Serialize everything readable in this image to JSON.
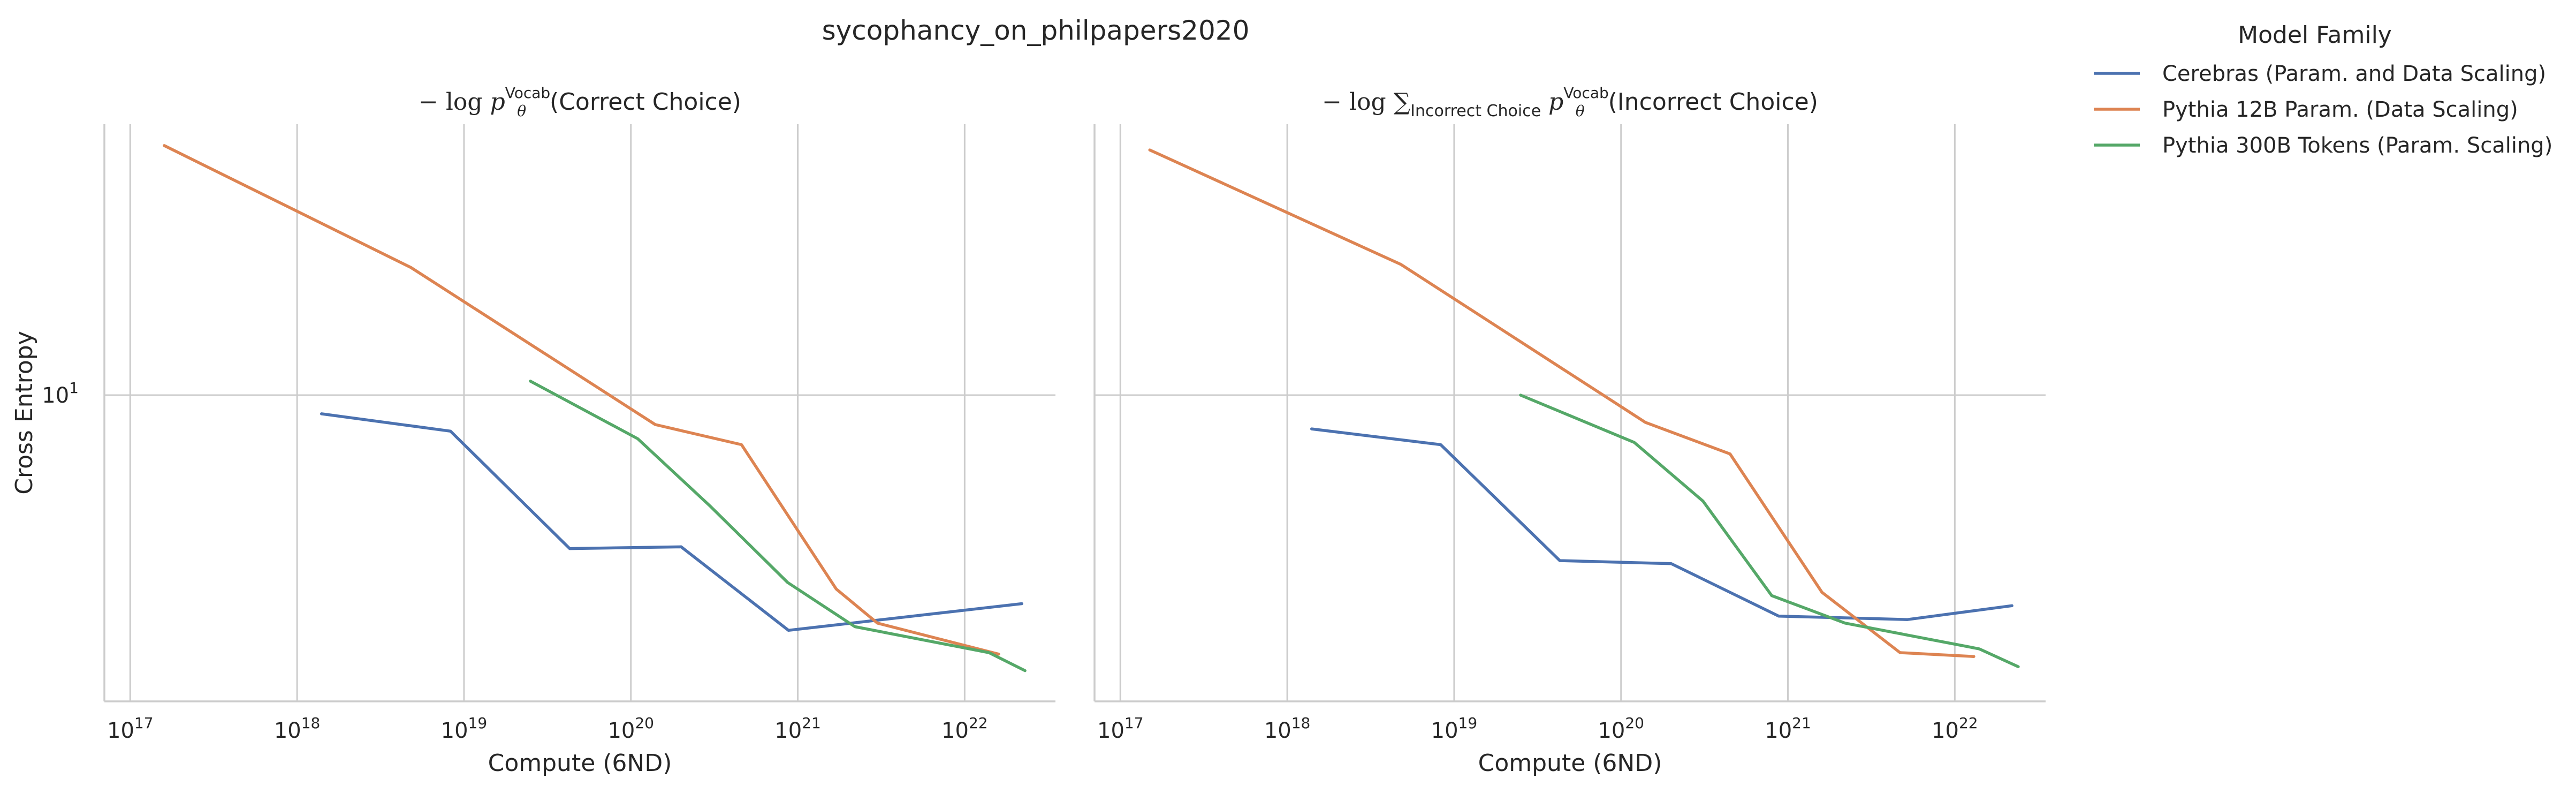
{
  "figure": {
    "title": "sycophancy_on_philpapers2020",
    "ylabel": "Cross Entropy"
  },
  "legend": {
    "title": "Model Family",
    "placement": "top-right outside"
  },
  "chart_data": [
    {
      "type": "line",
      "title": "−log p_θ^Vocab(Correct Choice)",
      "title_parts": {
        "lead": "− log ",
        "p": "p",
        "sup": "Vocab",
        "sub": "θ",
        "rest": "(Correct Choice)"
      },
      "xlabel": "Compute (6ND)",
      "ylabel": "Cross Entropy",
      "x_scale": "log",
      "y_scale": "log",
      "xlim": [
        7e+16,
        3.5e+22
      ],
      "ylim": [
        4.7,
        19.5
      ],
      "x_ticks": [
        {
          "value": 1e+17,
          "base": "10",
          "exp": "17"
        },
        {
          "value": 1e+18,
          "base": "10",
          "exp": "18"
        },
        {
          "value": 1e+19,
          "base": "10",
          "exp": "19"
        },
        {
          "value": 1e+20,
          "base": "10",
          "exp": "20"
        },
        {
          "value": 1e+21,
          "base": "10",
          "exp": "21"
        },
        {
          "value": 1e+22,
          "base": "10",
          "exp": "22"
        }
      ],
      "y_ticks": [
        {
          "value": 10,
          "base": "10",
          "exp": "1"
        }
      ],
      "grid": true,
      "series": [
        {
          "name": "Cerebras (Param. and Data Scaling)",
          "color": "#4c72b0",
          "x": [
            1.4e+18,
            8.3e+18,
            4.3e+19,
            2e+20,
            8.8e+20,
            2.2e+22
          ],
          "y": [
            9.55,
            9.15,
            6.85,
            6.88,
            5.6,
            5.98
          ]
        },
        {
          "name": "Pythia 12B Param. (Data Scaling)",
          "color": "#dd8452",
          "x": [
            1.6e+17,
            4.8e+18,
            1.4e+20,
            4.6e+20,
            1.7e+21,
            3e+21,
            1.6e+22
          ],
          "y": [
            18.5,
            13.7,
            9.3,
            8.85,
            6.2,
            5.7,
            5.28
          ]
        },
        {
          "name": "Pythia 300B Tokens (Param. Scaling)",
          "color": "#55a868",
          "x": [
            2.5e+19,
            1.1e+20,
            3e+20,
            8.7e+20,
            2.2e+21,
            1.4e+22,
            2.3e+22
          ],
          "y": [
            10.35,
            8.98,
            7.6,
            6.3,
            5.65,
            5.3,
            5.07
          ]
        }
      ]
    },
    {
      "type": "line",
      "title": "−log Σ_Incorrect Choice p_θ^Vocab(Incorrect Choice)",
      "title_parts": {
        "lead": "− log ",
        "sigma": "∑",
        "sigma_sub": "Incorrect Choice",
        "p": "p",
        "sup": "Vocab",
        "sub": "θ",
        "rest": "(Incorrect Choice)"
      },
      "xlabel": "Compute (6ND)",
      "ylabel": "",
      "x_scale": "log",
      "y_scale": "log",
      "xlim": [
        7e+16,
        3.5e+22
      ],
      "ylim": [
        4.7,
        19.5
      ],
      "x_ticks": [
        {
          "value": 1e+17,
          "base": "10",
          "exp": "17"
        },
        {
          "value": 1e+18,
          "base": "10",
          "exp": "18"
        },
        {
          "value": 1e+19,
          "base": "10",
          "exp": "19"
        },
        {
          "value": 1e+20,
          "base": "10",
          "exp": "20"
        },
        {
          "value": 1e+21,
          "base": "10",
          "exp": "21"
        },
        {
          "value": 1e+22,
          "base": "10",
          "exp": "22"
        }
      ],
      "y_ticks": [
        {
          "value": 10,
          "base": "10",
          "exp": "1"
        }
      ],
      "grid": true,
      "series": [
        {
          "name": "Cerebras (Param. and Data Scaling)",
          "color": "#4c72b0",
          "x": [
            1.4e+18,
            8.3e+18,
            4.3e+19,
            2e+20,
            8.8e+20,
            5.2e+21,
            2.2e+22
          ],
          "y": [
            9.2,
            8.85,
            6.65,
            6.6,
            5.8,
            5.75,
            5.95
          ]
        },
        {
          "name": "Pythia 12B Param. (Data Scaling)",
          "color": "#dd8452",
          "x": [
            1.5e+17,
            4.8e+18,
            1.4e+20,
            4.5e+20,
            1.6e+21,
            4.7e+21,
            1.3e+22
          ],
          "y": [
            18.3,
            13.8,
            9.35,
            8.65,
            6.15,
            5.3,
            5.25
          ]
        },
        {
          "name": "Pythia 300B Tokens (Param. Scaling)",
          "color": "#55a868",
          "x": [
            2.5e+19,
            1.2e+20,
            3.1e+20,
            8e+20,
            2.2e+21,
            1.4e+22,
            2.4e+22
          ],
          "y": [
            10.0,
            8.9,
            7.7,
            6.1,
            5.7,
            5.35,
            5.12
          ]
        }
      ]
    }
  ]
}
